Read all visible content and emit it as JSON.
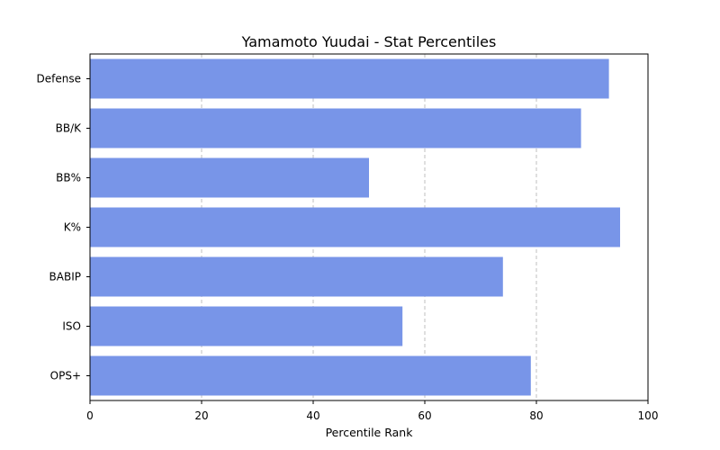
{
  "chart_data": {
    "type": "bar",
    "orientation": "horizontal",
    "title": "Yamamoto Yuudai - Stat Percentiles",
    "xlabel": "Percentile Rank",
    "ylabel": "",
    "categories": [
      "Defense",
      "BB/K",
      "BB%",
      "K%",
      "BABIP",
      "ISO",
      "OPS+"
    ],
    "values": [
      93,
      88,
      50,
      95,
      74,
      56,
      79
    ],
    "xlim": [
      0,
      100
    ],
    "xticks": [
      0,
      20,
      40,
      60,
      80,
      100
    ],
    "grid": "x-axis dashed",
    "bar_color": "#7895e8"
  }
}
